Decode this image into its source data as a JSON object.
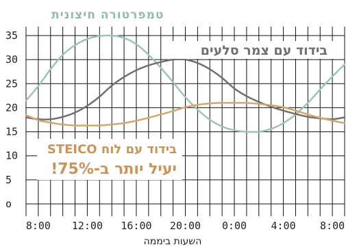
{
  "chart_data": {
    "type": "line",
    "title": "טמפרטורה חיצונית",
    "xlabel": "השעות ביממה",
    "ylabel": "",
    "ylim": [
      0,
      35
    ],
    "yticks": [
      0,
      5,
      10,
      15,
      20,
      25,
      30,
      35
    ],
    "xlim": [
      7,
      33
    ],
    "xticks": [
      {
        "hour": 8,
        "label": "8:00"
      },
      {
        "hour": 12,
        "label": "12:00"
      },
      {
        "hour": 16,
        "label": "16:00"
      },
      {
        "hour": 20,
        "label": "20:00"
      },
      {
        "hour": 24,
        "label": "0:00"
      },
      {
        "hour": 28,
        "label": "4:00"
      },
      {
        "hour": 32,
        "label": "8:00"
      }
    ],
    "grid": true,
    "series": [
      {
        "name": "טמפרטורה חיצונית",
        "color": "#9dc5ae",
        "points": [
          [
            7,
            21.5
          ],
          [
            8,
            24.5
          ],
          [
            9,
            28
          ],
          [
            10,
            31
          ],
          [
            11,
            33
          ],
          [
            12,
            34.3
          ],
          [
            13,
            34.9
          ],
          [
            14,
            35
          ],
          [
            15,
            34.5
          ],
          [
            16,
            33.2
          ],
          [
            17,
            31
          ],
          [
            18,
            28.3
          ],
          [
            19,
            25.3
          ],
          [
            20,
            22.2
          ],
          [
            21,
            19.6
          ],
          [
            22,
            17.5
          ],
          [
            23,
            16.1
          ],
          [
            24,
            15.3
          ],
          [
            25,
            15
          ],
          [
            26,
            15
          ],
          [
            27,
            15.6
          ],
          [
            28,
            16.8
          ],
          [
            29,
            18.6
          ],
          [
            30,
            21
          ],
          [
            31,
            23.8
          ],
          [
            32,
            26.5
          ],
          [
            33,
            29
          ]
        ]
      },
      {
        "name": "בידוד עם צמר סלעים",
        "color": "#6f6f6f",
        "points": [
          [
            7,
            18
          ],
          [
            8,
            17.6
          ],
          [
            9,
            17.6
          ],
          [
            10,
            18.1
          ],
          [
            11,
            19
          ],
          [
            12,
            20.4
          ],
          [
            13,
            22.3
          ],
          [
            14,
            24.6
          ],
          [
            15,
            26.4
          ],
          [
            16,
            27.8
          ],
          [
            17,
            28.8
          ],
          [
            18,
            29.5
          ],
          [
            19,
            30
          ],
          [
            20,
            30
          ],
          [
            21,
            29.3
          ],
          [
            22,
            28
          ],
          [
            23,
            26.2
          ],
          [
            24,
            24
          ],
          [
            25,
            22.4
          ],
          [
            26,
            21.2
          ],
          [
            27,
            20.2
          ],
          [
            28,
            19.4
          ],
          [
            29,
            18.7
          ],
          [
            30,
            18.1
          ],
          [
            31,
            17.8
          ],
          [
            32,
            17.6
          ],
          [
            33,
            18
          ]
        ]
      },
      {
        "name": "בידוד עם לוח STEICO",
        "color": "#d4a56d",
        "points": [
          [
            7,
            18.5
          ],
          [
            8,
            17.4
          ],
          [
            9,
            16.9
          ],
          [
            10,
            16.5
          ],
          [
            11,
            16.3
          ],
          [
            12,
            16.3
          ],
          [
            13,
            16.3
          ],
          [
            14,
            16.5
          ],
          [
            15,
            16.8
          ],
          [
            16,
            17.3
          ],
          [
            17,
            17.9
          ],
          [
            18,
            18.6
          ],
          [
            19,
            19.3
          ],
          [
            20,
            20.1
          ],
          [
            21,
            20.6
          ],
          [
            22,
            20.9
          ],
          [
            23,
            21
          ],
          [
            24,
            21
          ],
          [
            25,
            21
          ],
          [
            26,
            20.8
          ],
          [
            27,
            20.5
          ],
          [
            28,
            20.1
          ],
          [
            29,
            19.4
          ],
          [
            30,
            18.6
          ],
          [
            31,
            17.9
          ],
          [
            32,
            17.3
          ],
          [
            33,
            16.8
          ]
        ]
      }
    ],
    "annotations": {
      "rockwool_label": "בידוד עם צמר סלעים",
      "steico_label": "בידוד עם לוח STEICO",
      "steico_claim": "יעיל יותר ב-75%!"
    }
  }
}
